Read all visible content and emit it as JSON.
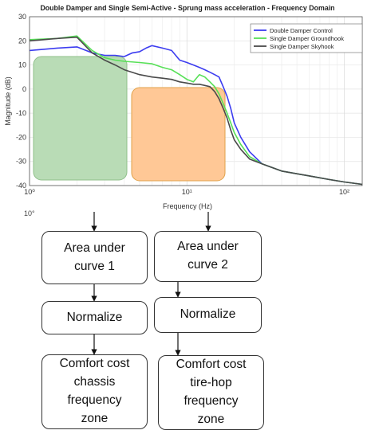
{
  "chart_data": {
    "type": "line",
    "title": "Double Damper and Single Semi-Active - Sprung mass acceleration - Frequency Domain",
    "xlabel": "Frequency (Hz)",
    "ylabel": "Magnitude (dB)",
    "xscale": "log",
    "xlim": [
      1,
      130
    ],
    "ylim": [
      -40,
      30
    ],
    "x_ticks": [
      1,
      10,
      100
    ],
    "x_tick_labels": [
      "10⁰",
      "10¹",
      "10²"
    ],
    "y_ticks": [
      -40,
      -30,
      -20,
      -10,
      0,
      10,
      20,
      30
    ],
    "grid": true,
    "legend_position": "top-right",
    "series": [
      {
        "name": "Double Damper Control",
        "color": "#3c3cf0",
        "x": [
          1,
          1.5,
          2,
          2.5,
          3,
          3.5,
          4,
          4.5,
          5,
          5.5,
          6,
          7,
          8,
          9,
          10,
          11,
          12,
          13,
          14,
          15,
          16,
          17,
          18,
          19,
          20,
          22,
          25,
          30,
          40,
          60,
          80,
          100,
          130
        ],
        "y": [
          16,
          17,
          17.5,
          15,
          14,
          14,
          13.5,
          15,
          15.5,
          17,
          18,
          17,
          16,
          12,
          11,
          10,
          9,
          8,
          7,
          6,
          5,
          1,
          -3,
          -8,
          -14,
          -20,
          -26,
          -31,
          -34,
          -36,
          -37.5,
          -38.5,
          -39.5
        ]
      },
      {
        "name": "Single Damper Groundhook",
        "color": "#57e057",
        "x": [
          1,
          1.5,
          2,
          2.5,
          3,
          3.5,
          4,
          5,
          6,
          7,
          8,
          9,
          10,
          11,
          12,
          13,
          14,
          15,
          16,
          17,
          18,
          19,
          20,
          22,
          25,
          30,
          40,
          60,
          80,
          100,
          130
        ],
        "y": [
          20.5,
          21,
          22,
          16,
          13,
          12,
          11.5,
          11,
          10.5,
          9,
          8,
          6,
          4,
          3,
          6,
          5,
          3,
          1,
          -2,
          -6,
          -10,
          -14,
          -18,
          -23,
          -28,
          -31,
          -34,
          -36,
          -37.5,
          -38.5,
          -39.5
        ]
      },
      {
        "name": "Single Damper Skyhook",
        "color": "#4a4a4a",
        "x": [
          1,
          1.5,
          2,
          2.5,
          3,
          3.5,
          4,
          5,
          6,
          7,
          8,
          9,
          10,
          11,
          12,
          13,
          14,
          15,
          16,
          17,
          18,
          19,
          20,
          22,
          25,
          30,
          40,
          60,
          80,
          100,
          130
        ],
        "y": [
          20,
          21,
          21.5,
          15,
          12,
          10,
          8,
          6,
          5,
          4.5,
          4,
          3,
          2.5,
          2,
          2,
          1.5,
          1,
          -1,
          -4,
          -8,
          -12,
          -17,
          -21,
          -25,
          -29,
          -31,
          -34,
          -36,
          -37.5,
          -38.5,
          -39.5
        ]
      }
    ],
    "highlight_regions": [
      {
        "color": "#b9dcb6"
      },
      {
        "color": "#ffc896"
      }
    ]
  },
  "flowchart": {
    "stray_text": "10°",
    "col1": [
      "Area under\ncurve 1",
      "Normalize",
      "Comfort cost\nchassis\nfrequency\nzone"
    ],
    "col2": [
      "Area under\ncurve 2",
      "Normalize",
      "Comfort cost\ntire-hop\nfrequency\nzone"
    ]
  }
}
